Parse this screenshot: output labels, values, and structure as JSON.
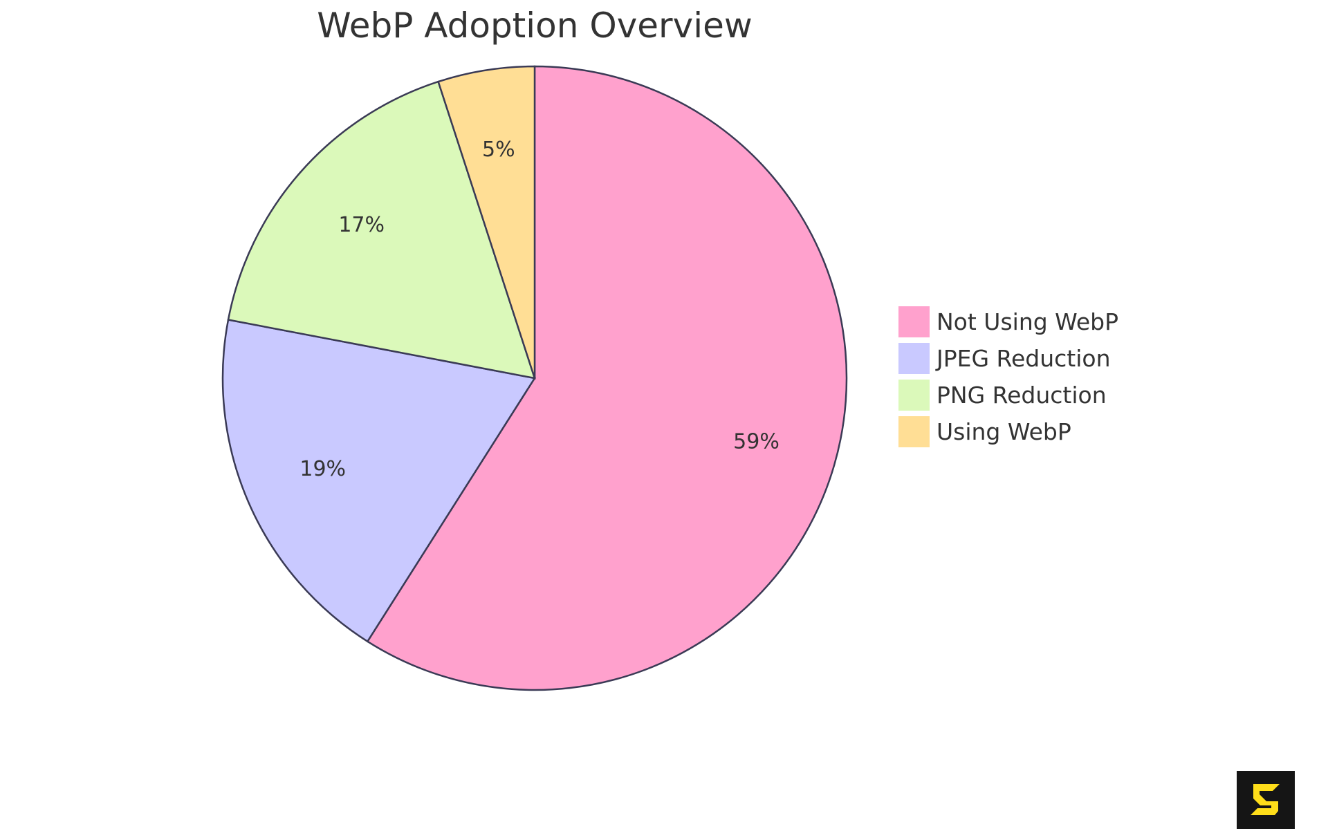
{
  "chart_data": {
    "type": "pie",
    "title": "WebP Adoption Overview",
    "slices": [
      {
        "label": "Not Using WebP",
        "value": 59,
        "display": "59%",
        "color": "#ffa1cd"
      },
      {
        "label": "JPEG Reduction",
        "value": 19,
        "display": "19%",
        "color": "#c9c9ff"
      },
      {
        "label": "PNG Reduction",
        "value": 17,
        "display": "17%",
        "color": "#dbf9ba"
      },
      {
        "label": "Using WebP",
        "value": 5,
        "display": "5%",
        "color": "#ffde95"
      }
    ],
    "legend_position": "right",
    "stroke_color": "#3a3a55"
  },
  "logo": {
    "color": "#ffde1a",
    "background": "#151515"
  }
}
